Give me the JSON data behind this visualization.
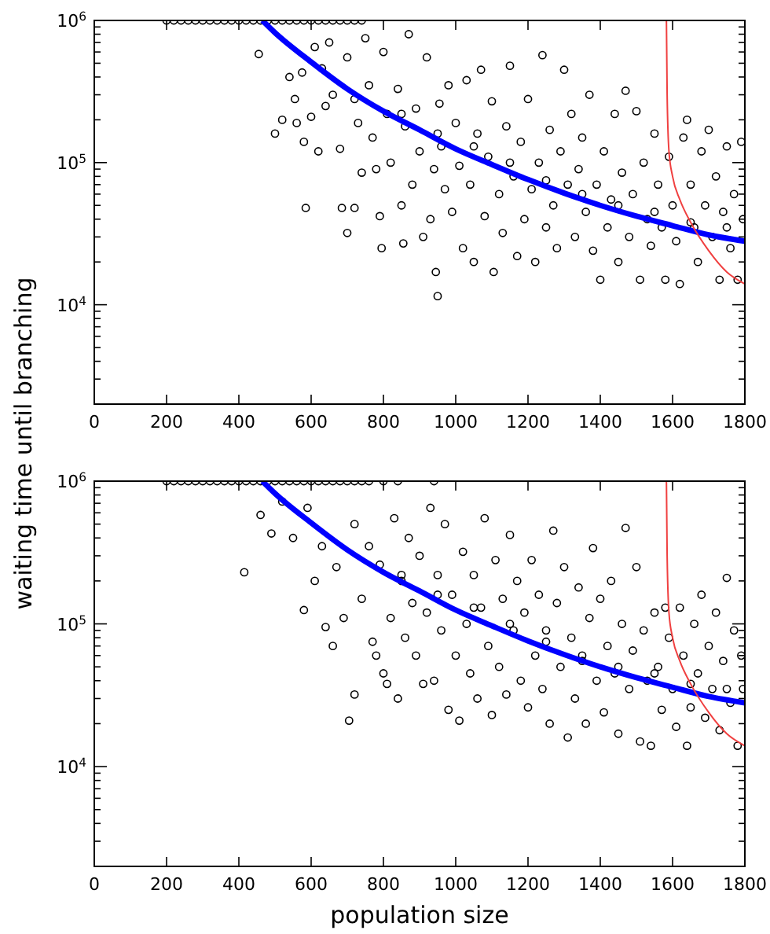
{
  "chart_data": [
    {
      "type": "scatter",
      "xlim": [
        0,
        1800
      ],
      "xticks": [
        0,
        200,
        400,
        600,
        800,
        1000,
        1200,
        1400,
        1600,
        1800
      ],
      "ylim": [
        2000,
        1000000
      ],
      "log": "y",
      "ylabel": "waiting time until branching",
      "yticks": [
        {
          "value": 2000,
          "label": null
        },
        {
          "value": 3000,
          "label": null
        },
        {
          "value": 4000,
          "label": null
        },
        {
          "value": 5000,
          "label": null
        },
        {
          "value": 6000,
          "label": null
        },
        {
          "value": 7000,
          "label": null
        },
        {
          "value": 8000,
          "label": null
        },
        {
          "value": 9000,
          "label": null
        },
        {
          "value": 10000,
          "label": "10$^{4}$"
        },
        {
          "value": 20000,
          "label": null
        },
        {
          "value": 30000,
          "label": null
        },
        {
          "value": 40000,
          "label": null
        },
        {
          "value": 50000,
          "label": null
        },
        {
          "value": 60000,
          "label": null
        },
        {
          "value": 70000,
          "label": null
        },
        {
          "value": 80000,
          "label": null
        },
        {
          "value": 90000,
          "label": null
        },
        {
          "value": 100000,
          "label": "10$^{5}$"
        },
        {
          "value": 200000,
          "label": null
        },
        {
          "value": 300000,
          "label": null
        },
        {
          "value": 400000,
          "label": null
        },
        {
          "value": 500000,
          "label": null
        },
        {
          "value": 600000,
          "label": null
        },
        {
          "value": 700000,
          "label": null
        },
        {
          "value": 800000,
          "label": null
        },
        {
          "value": 900000,
          "label": null
        },
        {
          "value": 1000000,
          "label": "10$^{6}$"
        }
      ],
      "series": [
        {
          "color": "#000000",
          "marker": "circle",
          "x": [
            200,
            220,
            240,
            260,
            280,
            300,
            320,
            340,
            360,
            380,
            400,
            420,
            440,
            460,
            480,
            500,
            520,
            540,
            560,
            580,
            600,
            620,
            640,
            660,
            680,
            700,
            720,
            740,
            455,
            500,
            520,
            540,
            555,
            560,
            575,
            580,
            585,
            600,
            610,
            620,
            630,
            640,
            650,
            660,
            680,
            685,
            700,
            700,
            720,
            720,
            730,
            740,
            750,
            760,
            770,
            780,
            790,
            795,
            800,
            810,
            820,
            840,
            850,
            855,
            860,
            870,
            880,
            890,
            900,
            910,
            920,
            930,
            940,
            945,
            950,
            955,
            960,
            970,
            980,
            990,
            1000,
            1010,
            1020,
            1030,
            1040,
            1050,
            1060,
            1070,
            1080,
            1090,
            1100,
            1105,
            1120,
            1130,
            1140,
            1150,
            1160,
            1170,
            1180,
            1190,
            1200,
            1210,
            1220,
            1230,
            1240,
            1250,
            1260,
            1270,
            1280,
            1290,
            1300,
            1310,
            1320,
            1330,
            1340,
            1350,
            1360,
            1370,
            1380,
            1390,
            1400,
            1410,
            1420,
            1430,
            1440,
            1450,
            1460,
            1470,
            1480,
            1490,
            1500,
            1510,
            1520,
            1530,
            1540,
            1550,
            1560,
            1570,
            1580,
            1590,
            1600,
            1610,
            1620,
            1630,
            1640,
            1650,
            1660,
            1670,
            1680,
            1690,
            1700,
            1710,
            1720,
            1730,
            1740,
            1750,
            1760,
            1770,
            1780,
            1790,
            1795,
            1350,
            1450,
            1550,
            1650,
            1750,
            1250,
            1150,
            1050,
            950,
            850
          ],
          "values": [
            1000000,
            1000000,
            1000000,
            1000000,
            1000000,
            1000000,
            1000000,
            1000000,
            1000000,
            1000000,
            1000000,
            1000000,
            1000000,
            1000000,
            1000000,
            1000000,
            1000000,
            1000000,
            1000000,
            1000000,
            1000000,
            1000000,
            1000000,
            1000000,
            1000000,
            1000000,
            1000000,
            1000000,
            580000,
            160000,
            200000,
            400000,
            280000,
            190000,
            430000,
            140000,
            48000,
            210000,
            650000,
            120000,
            460000,
            250000,
            700000,
            300000,
            125000,
            48000,
            32000,
            550000,
            48000,
            280000,
            190000,
            85000,
            750000,
            350000,
            150000,
            90000,
            42000,
            25000,
            600000,
            220000,
            100000,
            330000,
            50000,
            27000,
            180000,
            800000,
            70000,
            240000,
            120000,
            30000,
            550000,
            40000,
            90000,
            17000,
            11500,
            260000,
            130000,
            65000,
            350000,
            45000,
            190000,
            95000,
            25000,
            380000,
            70000,
            20000,
            160000,
            450000,
            42000,
            110000,
            270000,
            17000,
            60000,
            32000,
            180000,
            480000,
            80000,
            22000,
            140000,
            40000,
            280000,
            65000,
            20000,
            100000,
            570000,
            35000,
            170000,
            50000,
            25000,
            120000,
            450000,
            70000,
            220000,
            30000,
            90000,
            150000,
            45000,
            300000,
            24000,
            70000,
            15000,
            120000,
            35000,
            55000,
            220000,
            20000,
            85000,
            320000,
            30000,
            60000,
            230000,
            15000,
            100000,
            40000,
            26000,
            160000,
            70000,
            35000,
            15000,
            110000,
            50000,
            28000,
            14000,
            150000,
            200000,
            70000,
            35000,
            20000,
            120000,
            50000,
            170000,
            30000,
            80000,
            15000,
            45000,
            130000,
            25000,
            60000,
            15000,
            140000,
            40000,
            60000,
            50000,
            45000,
            38000,
            35000,
            75000,
            100000,
            130000,
            160000,
            220000
          ]
        },
        {
          "type": "line",
          "color": "#0000ff",
          "x": [
            465,
            500,
            600,
            700,
            800,
            900,
            1000,
            1100,
            1200,
            1300,
            1400,
            1500,
            1600,
            1700,
            1800
          ],
          "values": [
            1000000,
            820000,
            510000,
            330000,
            230000,
            170000,
            125000,
            97000,
            76000,
            61000,
            50000,
            42000,
            36000,
            31000,
            28000
          ]
        },
        {
          "type": "line",
          "color": "#f04040",
          "x": [
            1583,
            1585,
            1590,
            1600,
            1620,
            1650,
            1700,
            1750,
            1800
          ],
          "values": [
            1000000,
            300000,
            120000,
            80000,
            55000,
            38000,
            24000,
            17000,
            14000
          ]
        }
      ]
    },
    {
      "type": "scatter",
      "xlim": [
        0,
        1800
      ],
      "xticks": [
        0,
        200,
        400,
        600,
        800,
        1000,
        1200,
        1400,
        1600,
        1800
      ],
      "ylim": [
        2000,
        1000000
      ],
      "log": "y",
      "xlabel": "population size",
      "yticks": [
        {
          "value": 2000,
          "label": null
        },
        {
          "value": 3000,
          "label": null
        },
        {
          "value": 4000,
          "label": null
        },
        {
          "value": 5000,
          "label": null
        },
        {
          "value": 6000,
          "label": null
        },
        {
          "value": 7000,
          "label": null
        },
        {
          "value": 8000,
          "label": null
        },
        {
          "value": 9000,
          "label": null
        },
        {
          "value": 10000,
          "label": "10$^{4}$"
        },
        {
          "value": 20000,
          "label": null
        },
        {
          "value": 30000,
          "label": null
        },
        {
          "value": 40000,
          "label": null
        },
        {
          "value": 50000,
          "label": null
        },
        {
          "value": 60000,
          "label": null
        },
        {
          "value": 70000,
          "label": null
        },
        {
          "value": 80000,
          "label": null
        },
        {
          "value": 90000,
          "label": null
        },
        {
          "value": 100000,
          "label": "10$^{5}$"
        },
        {
          "value": 200000,
          "label": null
        },
        {
          "value": 300000,
          "label": null
        },
        {
          "value": 400000,
          "label": null
        },
        {
          "value": 500000,
          "label": null
        },
        {
          "value": 600000,
          "label": null
        },
        {
          "value": 700000,
          "label": null
        },
        {
          "value": 800000,
          "label": null
        },
        {
          "value": 900000,
          "label": null
        },
        {
          "value": 1000000,
          "label": "10$^{6}$"
        }
      ],
      "series": [
        {
          "color": "#000000",
          "marker": "circle",
          "x": [
            200,
            220,
            240,
            260,
            280,
            300,
            320,
            340,
            360,
            380,
            400,
            420,
            440,
            460,
            480,
            500,
            520,
            540,
            560,
            580,
            600,
            620,
            640,
            660,
            680,
            700,
            720,
            740,
            760,
            800,
            840,
            940,
            415,
            460,
            490,
            520,
            550,
            580,
            590,
            610,
            630,
            640,
            660,
            670,
            690,
            705,
            720,
            720,
            740,
            760,
            770,
            780,
            790,
            800,
            810,
            820,
            830,
            840,
            850,
            860,
            870,
            880,
            890,
            900,
            910,
            920,
            930,
            940,
            950,
            960,
            970,
            980,
            990,
            1000,
            1010,
            1020,
            1030,
            1040,
            1050,
            1060,
            1070,
            1080,
            1090,
            1100,
            1110,
            1120,
            1130,
            1140,
            1150,
            1160,
            1170,
            1180,
            1190,
            1200,
            1210,
            1220,
            1230,
            1240,
            1250,
            1260,
            1270,
            1280,
            1290,
            1300,
            1310,
            1320,
            1330,
            1340,
            1350,
            1360,
            1370,
            1380,
            1390,
            1400,
            1410,
            1420,
            1430,
            1440,
            1450,
            1460,
            1470,
            1480,
            1490,
            1500,
            1510,
            1520,
            1530,
            1540,
            1550,
            1560,
            1570,
            1580,
            1590,
            1600,
            1610,
            1620,
            1630,
            1640,
            1650,
            1660,
            1670,
            1680,
            1690,
            1700,
            1710,
            1720,
            1730,
            1740,
            1750,
            1760,
            1770,
            1780,
            1790,
            1795,
            1350,
            1450,
            1550,
            1650,
            1750,
            1250,
            1150,
            1050,
            950,
            850
          ],
          "values": [
            1000000,
            1000000,
            1000000,
            1000000,
            1000000,
            1000000,
            1000000,
            1000000,
            1000000,
            1000000,
            1000000,
            1000000,
            1000000,
            1000000,
            1000000,
            1000000,
            1000000,
            1000000,
            1000000,
            1000000,
            1000000,
            1000000,
            1000000,
            1000000,
            1000000,
            1000000,
            1000000,
            1000000,
            1000000,
            1000000,
            1000000,
            1000000,
            230000,
            580000,
            430000,
            720000,
            400000,
            125000,
            650000,
            200000,
            350000,
            95000,
            70000,
            250000,
            110000,
            21000,
            32000,
            500000,
            150000,
            350000,
            75000,
            60000,
            260000,
            45000,
            38000,
            110000,
            550000,
            30000,
            200000,
            80000,
            400000,
            140000,
            60000,
            300000,
            38000,
            120000,
            650000,
            40000,
            220000,
            90000,
            500000,
            25000,
            160000,
            60000,
            21000,
            320000,
            100000,
            45000,
            220000,
            30000,
            130000,
            550000,
            70000,
            23000,
            280000,
            50000,
            150000,
            32000,
            420000,
            90000,
            200000,
            40000,
            120000,
            26000,
            280000,
            60000,
            160000,
            35000,
            90000,
            20000,
            450000,
            140000,
            50000,
            250000,
            16000,
            80000,
            30000,
            180000,
            55000,
            20000,
            110000,
            340000,
            40000,
            150000,
            24000,
            70000,
            200000,
            45000,
            17000,
            100000,
            470000,
            35000,
            65000,
            250000,
            15000,
            90000,
            40000,
            14000,
            120000,
            50000,
            25000,
            130000,
            80000,
            35000,
            19000,
            130000,
            60000,
            14000,
            26000,
            100000,
            45000,
            160000,
            22000,
            70000,
            35000,
            120000,
            18000,
            55000,
            210000,
            28000,
            90000,
            14000,
            60000,
            35000,
            60000,
            50000,
            45000,
            38000,
            35000,
            75000,
            100000,
            130000,
            160000,
            220000
          ]
        },
        {
          "type": "line",
          "color": "#0000ff",
          "x": [
            465,
            500,
            600,
            700,
            800,
            900,
            1000,
            1100,
            1200,
            1300,
            1400,
            1500,
            1600,
            1700,
            1800
          ],
          "values": [
            1000000,
            820000,
            510000,
            330000,
            230000,
            170000,
            125000,
            97000,
            76000,
            61000,
            50000,
            42000,
            36000,
            31000,
            28000
          ]
        },
        {
          "type": "line",
          "color": "#f04040",
          "x": [
            1583,
            1585,
            1590,
            1600,
            1620,
            1650,
            1700,
            1750,
            1800
          ],
          "values": [
            1000000,
            300000,
            120000,
            80000,
            55000,
            38000,
            24000,
            17000,
            14000
          ]
        }
      ]
    }
  ]
}
